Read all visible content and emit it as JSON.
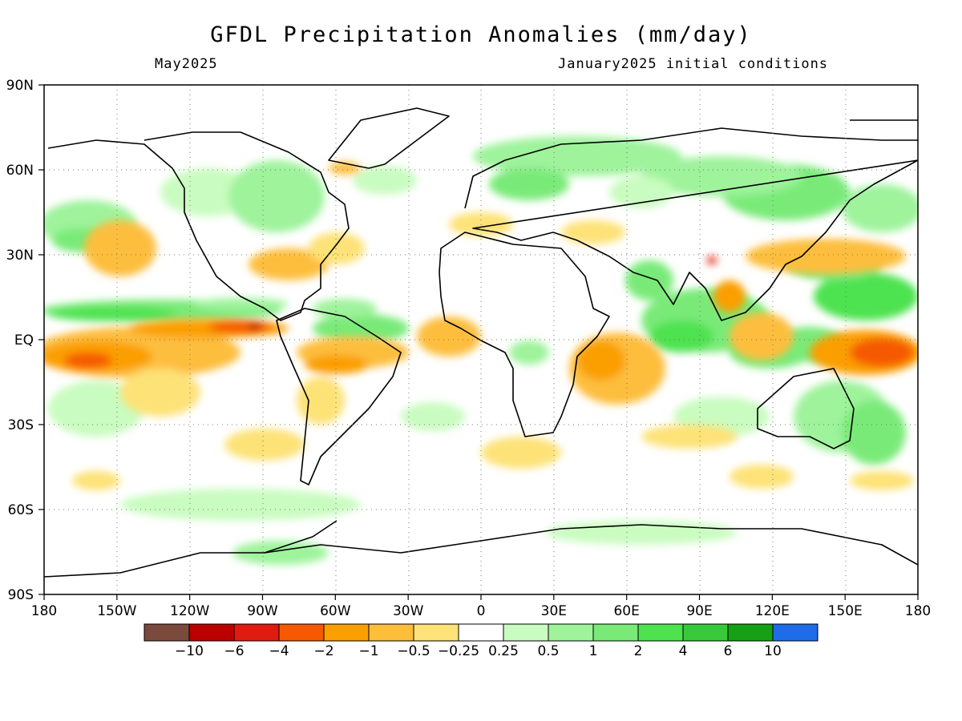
{
  "header": {
    "title": "GFDL Precipitation Anomalies (mm/day)",
    "month": "May2025",
    "init": "January2025 initial conditions"
  },
  "map": {
    "lat_labels": [
      "90N",
      "60N",
      "30N",
      "EQ",
      "30S",
      "60S",
      "90S"
    ],
    "lon_labels": [
      "180",
      "150W",
      "120W",
      "90W",
      "60W",
      "30W",
      "0",
      "30E",
      "60E",
      "90E",
      "120E",
      "150E",
      "180"
    ],
    "grid": "dotted"
  },
  "legend": {
    "colors": [
      "#7a4a3c",
      "#bb0000",
      "#e01b10",
      "#f55a00",
      "#fb9f00",
      "#fdbe3c",
      "#fde277",
      "#ffffff",
      "#c9fcc0",
      "#9ef39b",
      "#79ea78",
      "#4ee24f",
      "#38c93a",
      "#15a015",
      "#1f6ce8"
    ],
    "labels": [
      "−10",
      "−6",
      "−4",
      "−2",
      "−1",
      "−0.5",
      "−0.25",
      "0.25",
      "0.5",
      "1",
      "2",
      "4",
      "6",
      "10"
    ]
  }
}
